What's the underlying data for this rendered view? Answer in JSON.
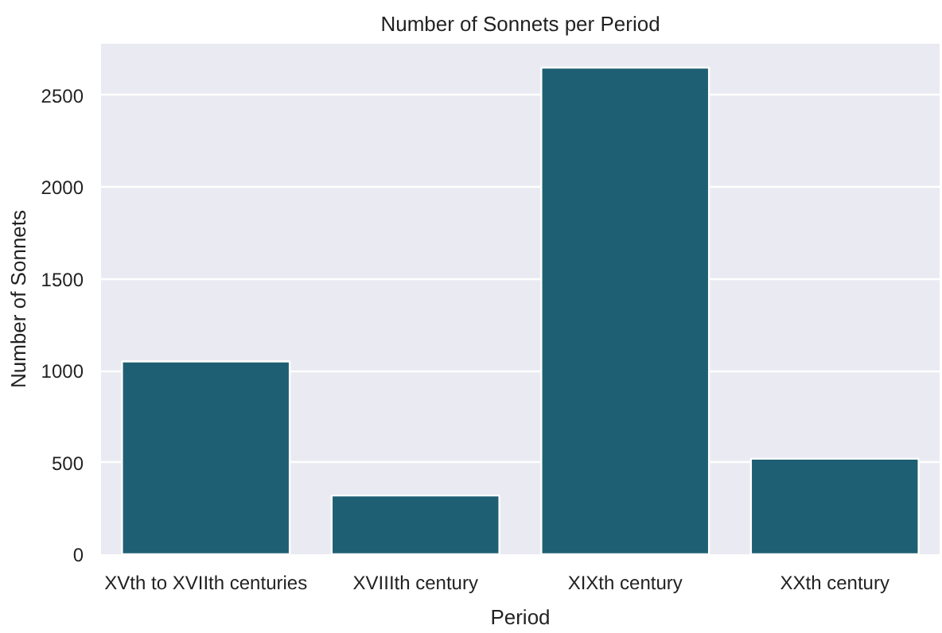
{
  "chart_data": {
    "type": "bar",
    "title": "Number of Sonnets per Period",
    "xlabel": "Period",
    "ylabel": "Number of Sonnets",
    "categories": [
      "XVth to XVIIth centuries",
      "XVIIIth century",
      "XIXth century",
      "XXth century"
    ],
    "values": [
      1050,
      320,
      2650,
      520
    ],
    "color": "#1f5f73",
    "ylim": [
      0,
      2780
    ],
    "yticks": [
      0,
      500,
      1000,
      1500,
      2000,
      2500
    ],
    "grid": "y"
  }
}
